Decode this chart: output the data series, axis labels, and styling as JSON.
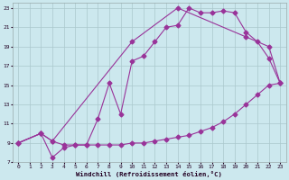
{
  "xlabel": "Windchill (Refroidissement éolien,°C)",
  "bg_color": "#cce8ee",
  "grid_color": "#aac8cc",
  "line_color": "#993399",
  "markersize": 2.5,
  "linewidth": 0.8,
  "xlim": [
    -0.5,
    23.5
  ],
  "ylim": [
    7,
    23.5
  ],
  "xticks": [
    0,
    1,
    2,
    3,
    4,
    5,
    6,
    7,
    8,
    9,
    10,
    11,
    12,
    13,
    14,
    15,
    16,
    17,
    18,
    19,
    20,
    21,
    22,
    23
  ],
  "yticks": [
    7,
    9,
    11,
    13,
    15,
    17,
    19,
    21,
    23
  ],
  "line1_x": [
    0,
    2,
    3,
    4,
    5,
    6,
    7,
    8,
    9,
    10,
    11,
    12,
    13,
    14,
    15,
    16,
    17,
    18,
    19,
    20,
    21,
    22,
    23
  ],
  "line1_y": [
    9.0,
    10.0,
    9.2,
    8.8,
    8.8,
    8.8,
    8.8,
    8.8,
    8.8,
    9.0,
    9.0,
    9.2,
    9.4,
    9.6,
    9.8,
    10.2,
    10.6,
    11.2,
    12.0,
    13.0,
    14.0,
    15.0,
    15.2
  ],
  "line2_x": [
    0,
    2,
    3,
    4,
    5,
    6,
    7,
    8,
    9,
    10,
    11,
    12,
    13,
    14,
    15,
    16,
    17,
    18,
    19,
    20,
    21,
    22,
    23
  ],
  "line2_y": [
    9.0,
    10.0,
    7.5,
    8.5,
    8.8,
    8.8,
    11.5,
    15.2,
    12.0,
    17.5,
    18.0,
    19.5,
    21.0,
    21.2,
    23.0,
    22.5,
    22.5,
    22.7,
    22.5,
    20.5,
    19.5,
    17.8,
    15.2
  ],
  "line3_x": [
    0,
    2,
    3,
    10,
    14,
    20,
    22,
    23
  ],
  "line3_y": [
    9.0,
    10.0,
    9.2,
    19.5,
    23.0,
    20.0,
    19.0,
    15.2
  ]
}
